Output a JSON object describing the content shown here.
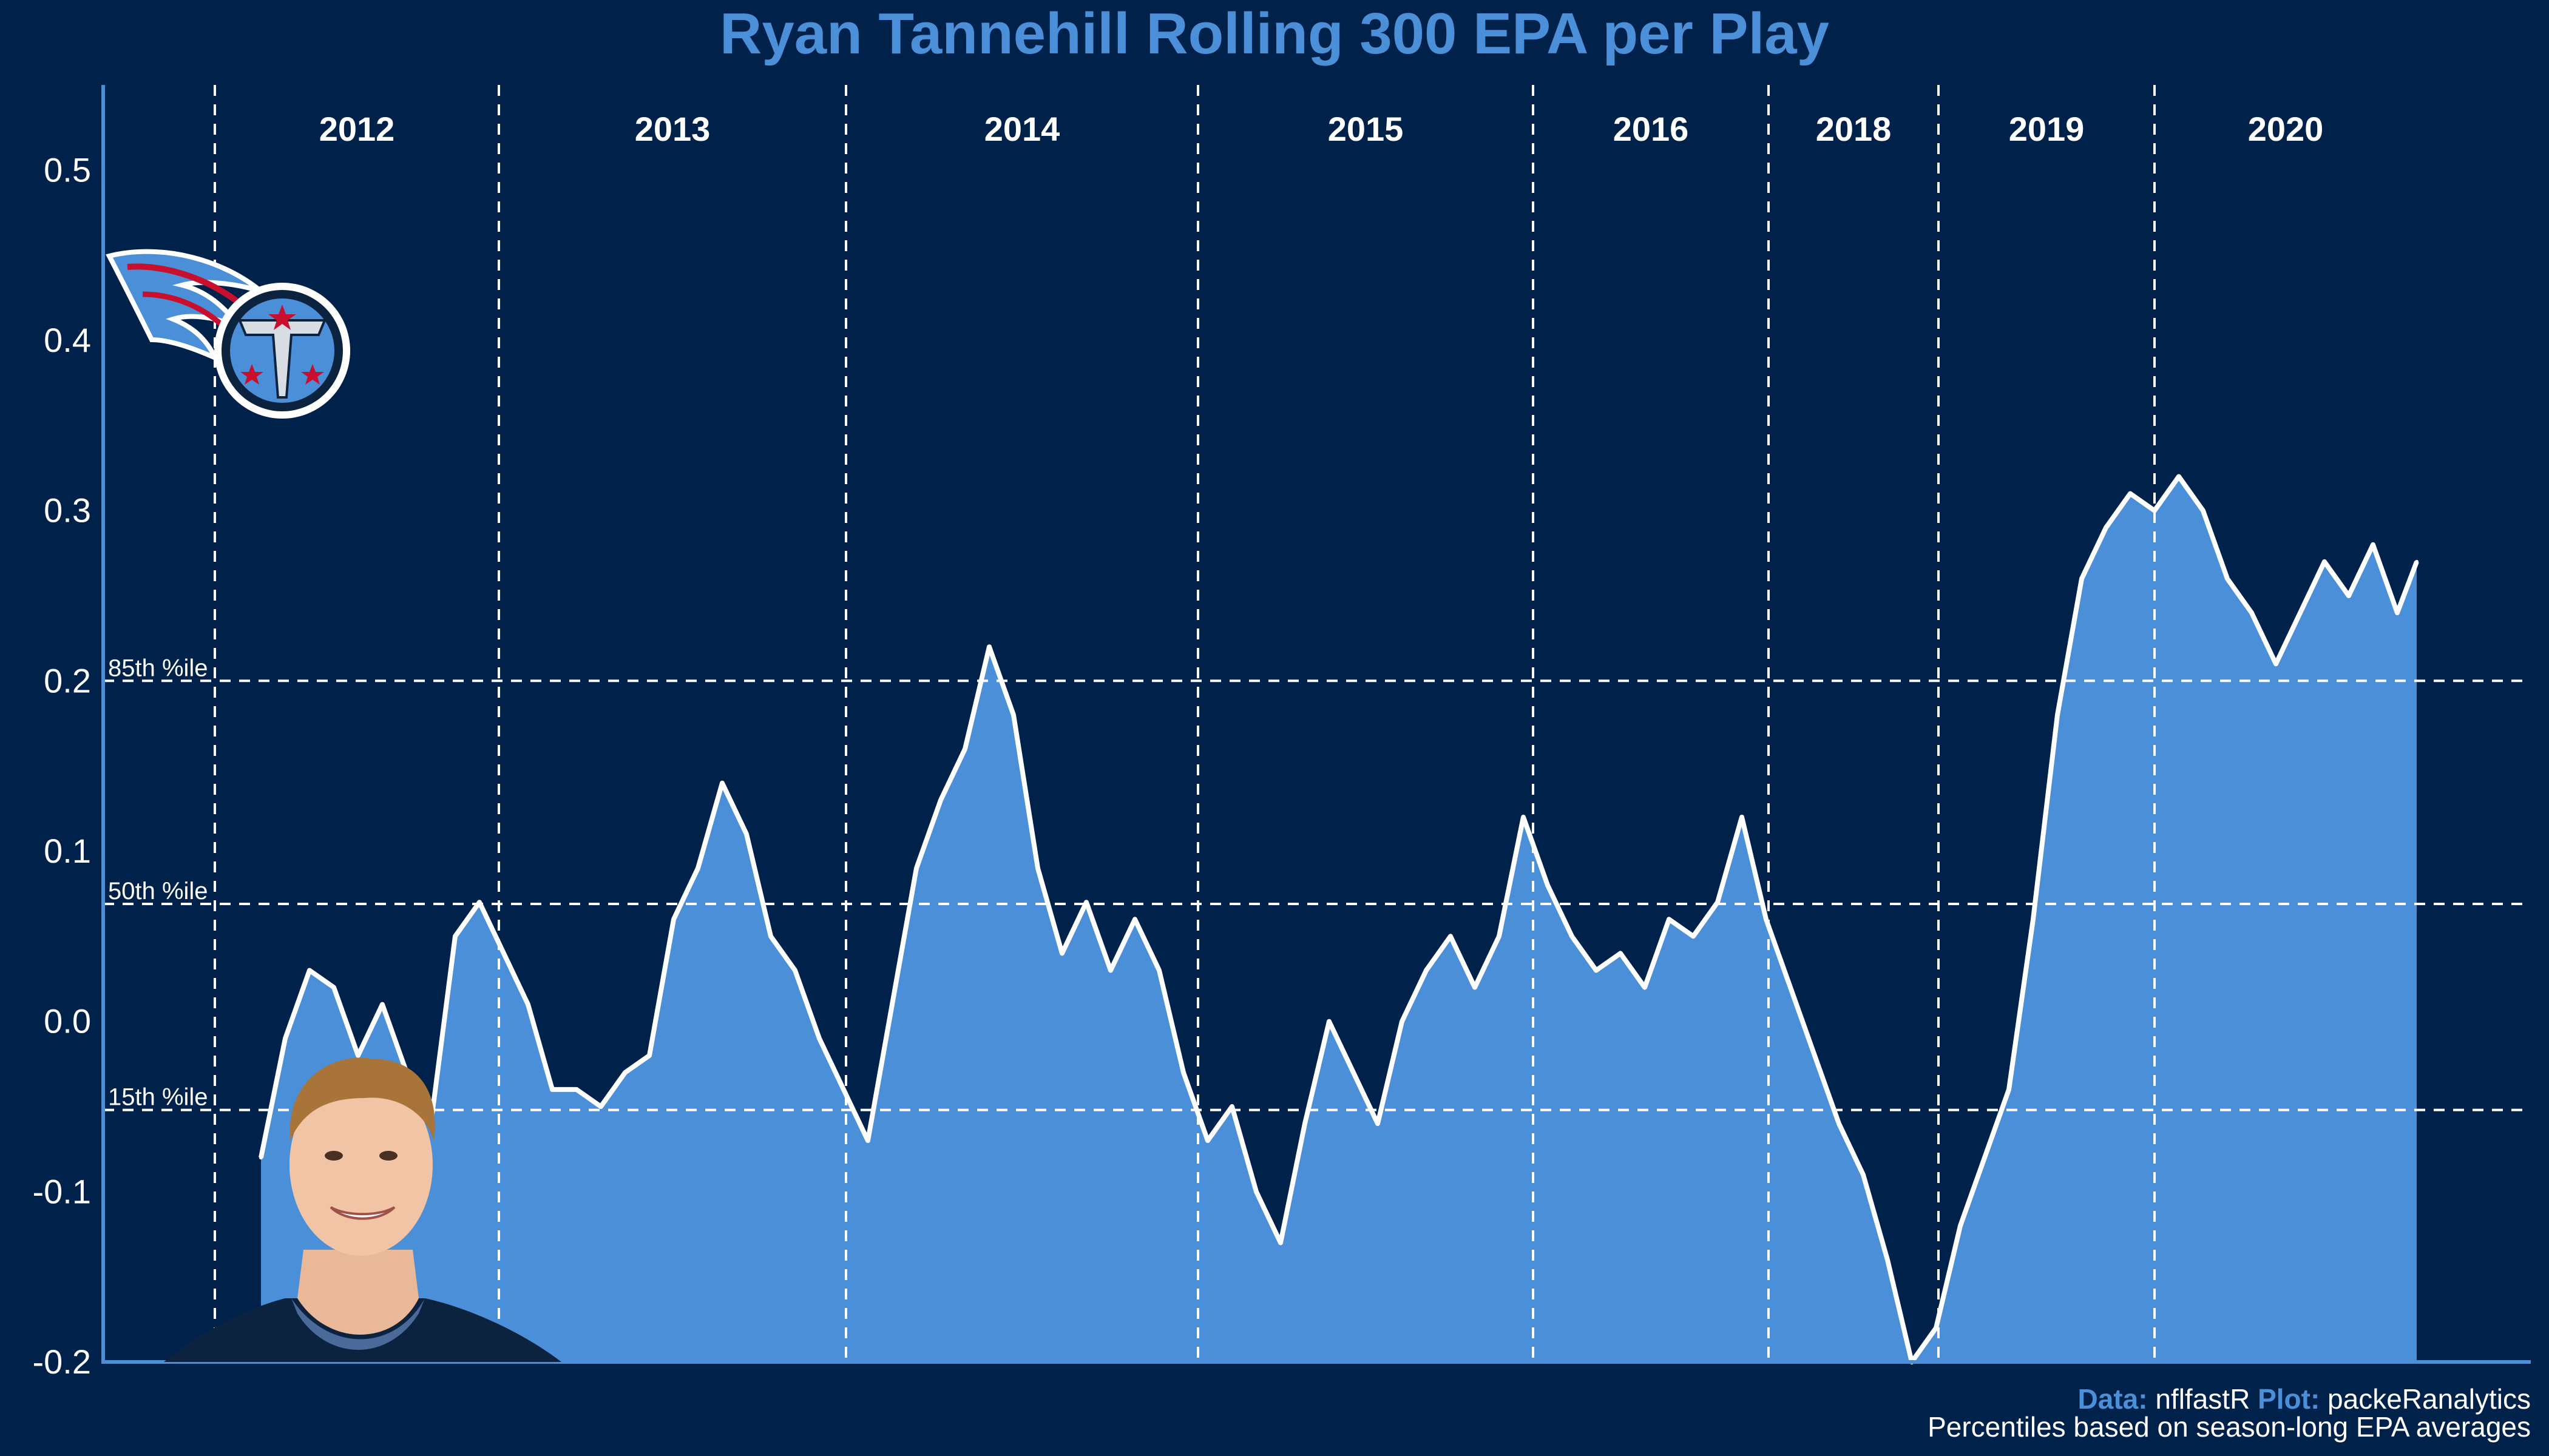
{
  "chart_data": {
    "type": "area",
    "title": "Ryan Tannehill Rolling 300 EPA per Play",
    "xlabel": "",
    "ylabel": "",
    "ylim": [
      -0.2,
      0.55
    ],
    "xlim": [
      0,
      100
    ],
    "y_ticks": [
      "0.5",
      "0.4",
      "0.3",
      "0.2",
      "0.1",
      "0.0",
      "-0.1",
      "-0.2"
    ],
    "y_tick_values": [
      0.5,
      0.4,
      0.3,
      0.2,
      0.1,
      0.0,
      -0.1,
      -0.2
    ],
    "grid": false,
    "fill_color": "#4a8fd8",
    "line_color": "#ffffff",
    "seasons": [
      {
        "label": "2012",
        "start": 4.6,
        "end": 16.3
      },
      {
        "label": "2013",
        "start": 16.3,
        "end": 30.6
      },
      {
        "label": "2014",
        "start": 30.6,
        "end": 45.1
      },
      {
        "label": "2015",
        "start": 45.1,
        "end": 58.9
      },
      {
        "label": "2016",
        "start": 58.9,
        "end": 68.6
      },
      {
        "label": "2018",
        "start": 68.6,
        "end": 75.6
      },
      {
        "label": "2019",
        "start": 75.6,
        "end": 84.5
      },
      {
        "label": "2020",
        "start": 84.5,
        "end": 95.3
      }
    ],
    "percentile_lines": [
      {
        "label": "85th %ile",
        "value": 0.2
      },
      {
        "label": "50th %ile",
        "value": 0.069
      },
      {
        "label": "15th %ile",
        "value": -0.052
      }
    ],
    "series": [
      {
        "x": [
          6.5,
          7.5,
          8.5,
          9.5,
          10.5,
          11.5,
          12.5,
          13.5,
          14.5,
          15.5,
          16.5,
          17.5,
          18.5,
          19.5,
          20.5,
          21.5,
          22.5,
          23.5,
          24.5,
          25.5,
          26.5,
          27.5,
          28.5,
          29.5,
          30.5,
          31.5,
          32.5,
          33.5,
          34.5,
          35.5,
          36.5,
          37.5,
          38.5,
          39.5,
          40.5,
          41.5,
          42.5,
          43.5,
          44.5,
          45.5,
          46.5,
          47.5,
          48.5,
          49.5,
          50.5,
          51.5,
          52.5,
          53.5,
          54.5,
          55.5,
          56.5,
          57.5,
          58.5,
          59.5,
          60.5,
          61.5,
          62.5,
          63.5,
          64.5,
          65.5,
          66.5,
          67.5,
          68.5,
          69.5,
          70.5,
          71.5,
          72.5,
          73.5,
          74.5,
          75.5,
          76.5,
          77.5,
          78.5,
          79.5,
          80.5,
          81.5,
          82.5,
          83.5,
          84.5,
          85.5,
          86.5,
          87.5,
          88.5,
          89.5,
          90.5,
          91.5,
          92.5,
          93.5,
          94.5,
          95.3
        ],
        "values": [
          -0.08,
          -0.01,
          0.03,
          0.02,
          -0.02,
          0.01,
          -0.03,
          -0.06,
          0.05,
          0.07,
          0.04,
          0.01,
          -0.04,
          -0.04,
          -0.05,
          -0.03,
          -0.02,
          0.06,
          0.09,
          0.14,
          0.11,
          0.05,
          0.03,
          -0.01,
          -0.04,
          -0.07,
          0.01,
          0.09,
          0.13,
          0.16,
          0.22,
          0.18,
          0.09,
          0.04,
          0.07,
          0.03,
          0.06,
          0.03,
          -0.03,
          -0.07,
          -0.05,
          -0.1,
          -0.13,
          -0.06,
          0.0,
          -0.03,
          -0.06,
          0.0,
          0.03,
          0.05,
          0.02,
          0.05,
          0.12,
          0.08,
          0.05,
          0.03,
          0.04,
          0.02,
          0.06,
          0.05,
          0.07,
          0.12,
          0.06,
          0.02,
          -0.02,
          -0.06,
          -0.09,
          -0.14,
          -0.2,
          -0.18,
          -0.12,
          -0.08,
          -0.04,
          0.06,
          0.18,
          0.26,
          0.29,
          0.31,
          0.3,
          0.32,
          0.3,
          0.26,
          0.24,
          0.21,
          0.24,
          0.27,
          0.25,
          0.28,
          0.24,
          0.27
        ]
      }
    ]
  },
  "caption": {
    "data_label": "Data:",
    "data_value": " nflfastR",
    "plot_label": " Plot:",
    "plot_value": " packeRanalytics",
    "note": "Percentiles based on season-long EPA averages"
  },
  "images": {
    "logo": "titans-logo",
    "player": "player-headshot"
  }
}
